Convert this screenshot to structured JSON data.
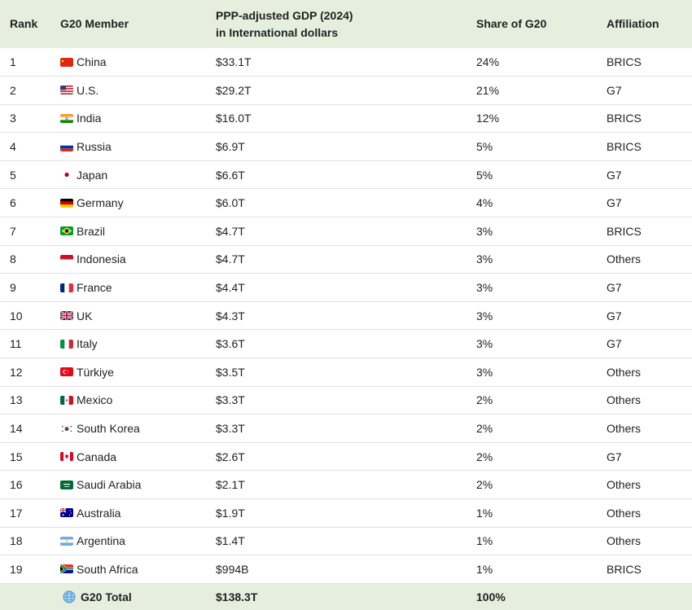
{
  "header": {
    "rank": "Rank",
    "member": "G20 Member",
    "gdp_line1": "PPP-adjusted GDP (2024)",
    "gdp_line2": "in International dollars",
    "share": "Share of G20",
    "affiliation": "Affiliation"
  },
  "rows": [
    {
      "rank": "1",
      "member": "China",
      "flag": "china-flag-icon",
      "gdp": "$33.1T",
      "share": "24%",
      "affiliation": "BRICS"
    },
    {
      "rank": "2",
      "member": "U.S.",
      "flag": "us-flag-icon",
      "gdp": "$29.2T",
      "share": "21%",
      "affiliation": "G7"
    },
    {
      "rank": "3",
      "member": "India",
      "flag": "india-flag-icon",
      "gdp": "$16.0T",
      "share": "12%",
      "affiliation": "BRICS"
    },
    {
      "rank": "4",
      "member": "Russia",
      "flag": "russia-flag-icon",
      "gdp": "$6.9T",
      "share": "5%",
      "affiliation": "BRICS"
    },
    {
      "rank": "5",
      "member": "Japan",
      "flag": "japan-flag-icon",
      "gdp": "$6.6T",
      "share": "5%",
      "affiliation": "G7"
    },
    {
      "rank": "6",
      "member": "Germany",
      "flag": "germany-flag-icon",
      "gdp": "$6.0T",
      "share": "4%",
      "affiliation": "G7"
    },
    {
      "rank": "7",
      "member": "Brazil",
      "flag": "brazil-flag-icon",
      "gdp": "$4.7T",
      "share": "3%",
      "affiliation": "BRICS"
    },
    {
      "rank": "8",
      "member": "Indonesia",
      "flag": "indonesia-flag-icon",
      "gdp": "$4.7T",
      "share": "3%",
      "affiliation": "Others"
    },
    {
      "rank": "9",
      "member": "France",
      "flag": "france-flag-icon",
      "gdp": "$4.4T",
      "share": "3%",
      "affiliation": "G7"
    },
    {
      "rank": "10",
      "member": "UK",
      "flag": "uk-flag-icon",
      "gdp": "$4.3T",
      "share": "3%",
      "affiliation": "G7"
    },
    {
      "rank": "11",
      "member": "Italy",
      "flag": "italy-flag-icon",
      "gdp": "$3.6T",
      "share": "3%",
      "affiliation": "G7"
    },
    {
      "rank": "12",
      "member": "Türkiye",
      "flag": "turkiye-flag-icon",
      "gdp": "$3.5T",
      "share": "3%",
      "affiliation": "Others"
    },
    {
      "rank": "13",
      "member": "Mexico",
      "flag": "mexico-flag-icon",
      "gdp": "$3.3T",
      "share": "2%",
      "affiliation": "Others"
    },
    {
      "rank": "14",
      "member": "South Korea",
      "flag": "south-korea-flag-icon",
      "gdp": "$3.3T",
      "share": "2%",
      "affiliation": "Others"
    },
    {
      "rank": "15",
      "member": "Canada",
      "flag": "canada-flag-icon",
      "gdp": "$2.6T",
      "share": "2%",
      "affiliation": "G7"
    },
    {
      "rank": "16",
      "member": "Saudi Arabia",
      "flag": "saudi-arabia-flag-icon",
      "gdp": "$2.1T",
      "share": "2%",
      "affiliation": "Others"
    },
    {
      "rank": "17",
      "member": "Australia",
      "flag": "australia-flag-icon",
      "gdp": "$1.9T",
      "share": "1%",
      "affiliation": "Others"
    },
    {
      "rank": "18",
      "member": "Argentina",
      "flag": "argentina-flag-icon",
      "gdp": "$1.4T",
      "share": "1%",
      "affiliation": "Others"
    },
    {
      "rank": "19",
      "member": "South Africa",
      "flag": "south-africa-flag-icon",
      "gdp": "$994B",
      "share": "1%",
      "affiliation": "BRICS"
    }
  ],
  "total": {
    "member": "G20 Total",
    "icon": "globe-icon",
    "gdp": "$138.3T",
    "share": "100%"
  },
  "colors": {
    "header_bg": "#e6eedd",
    "row_border": "#e2e2e2"
  }
}
